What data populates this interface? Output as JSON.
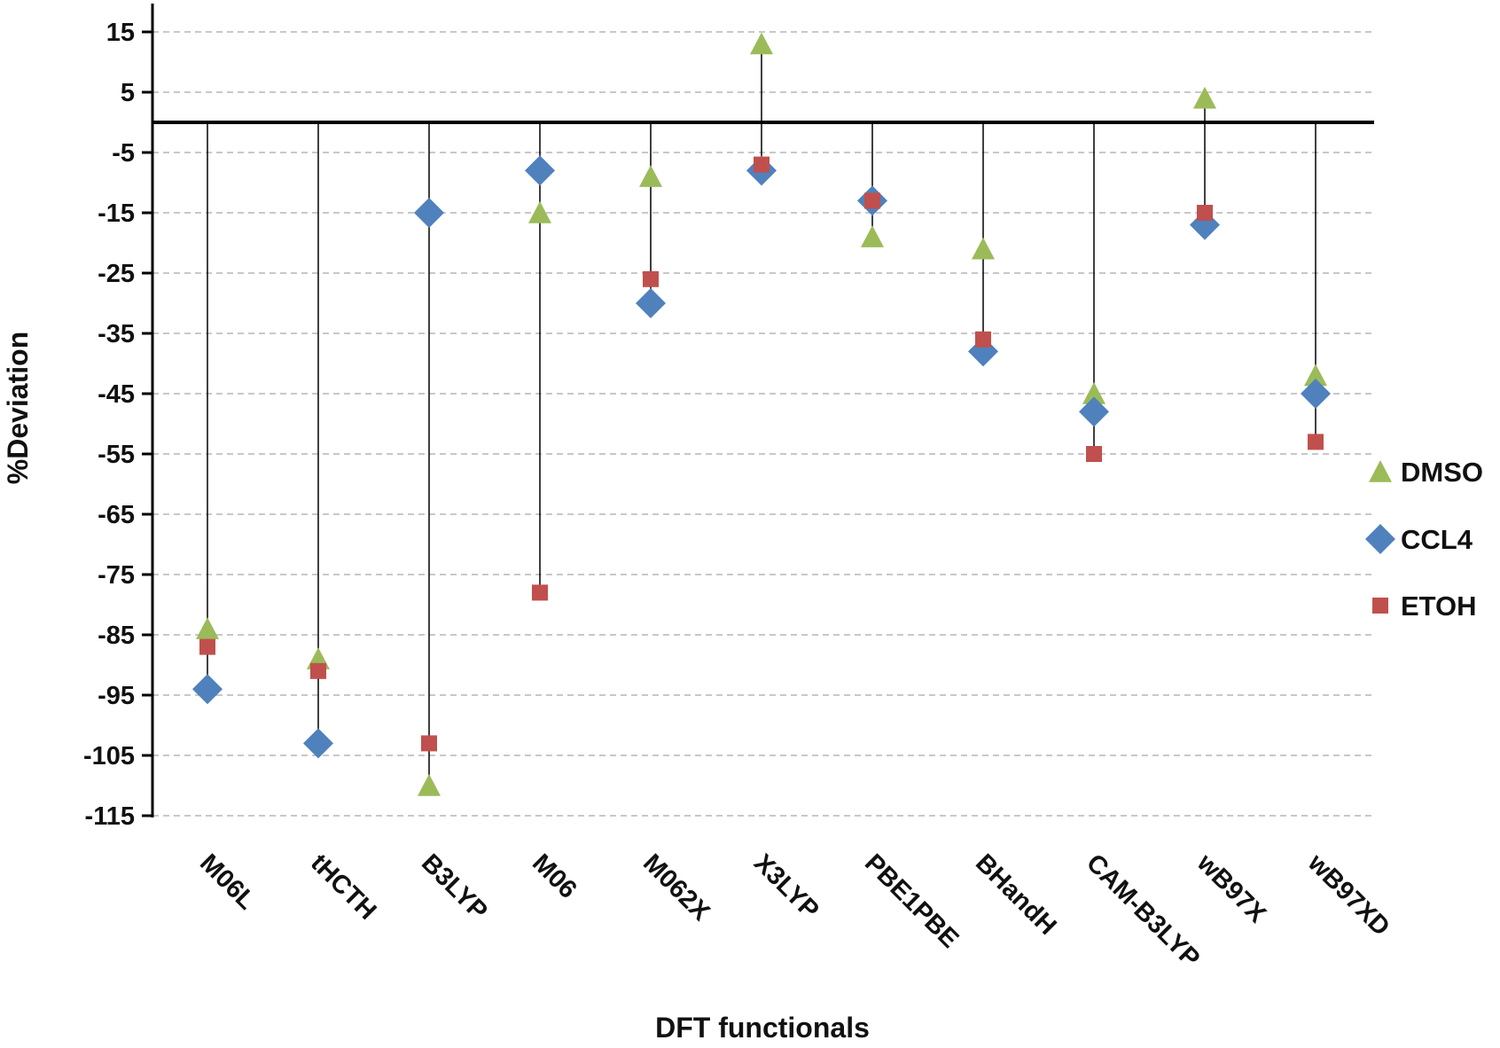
{
  "chart_data": {
    "type": "scatter",
    "title": "",
    "xlabel": "DFT functionals",
    "ylabel": "%Deviation",
    "ylim": [
      -115,
      20
    ],
    "yticks": [
      15,
      5,
      -5,
      -15,
      -25,
      -35,
      -45,
      -55,
      -65,
      -75,
      -85,
      -95,
      -105,
      -115
    ],
    "grid": true,
    "legend_position": "right",
    "categories": [
      "M06L",
      "tHCTH",
      "B3LYP",
      "M06",
      "M062X",
      "X3LYP",
      "PBE1PBE",
      "BHandH",
      "CAM-B3LYP",
      "wB97X",
      "wB97XD"
    ],
    "series": [
      {
        "name": "DMSO",
        "marker": "triangle",
        "color": "#9BBB59",
        "values": [
          -84,
          -89,
          -110,
          -15,
          -9,
          13,
          -19,
          -21,
          -45,
          4,
          -42
        ]
      },
      {
        "name": "CCL4",
        "marker": "diamond",
        "color": "#4F81BD",
        "values": [
          -94,
          -103,
          -15,
          -8,
          -30,
          -8,
          -13,
          -38,
          -48,
          -17,
          -45
        ]
      },
      {
        "name": "ETOH",
        "marker": "square",
        "color": "#C0504D",
        "values": [
          -87,
          -91,
          -103,
          -78,
          -26,
          -7,
          -13,
          -36,
          -55,
          -15,
          -53
        ]
      }
    ]
  }
}
